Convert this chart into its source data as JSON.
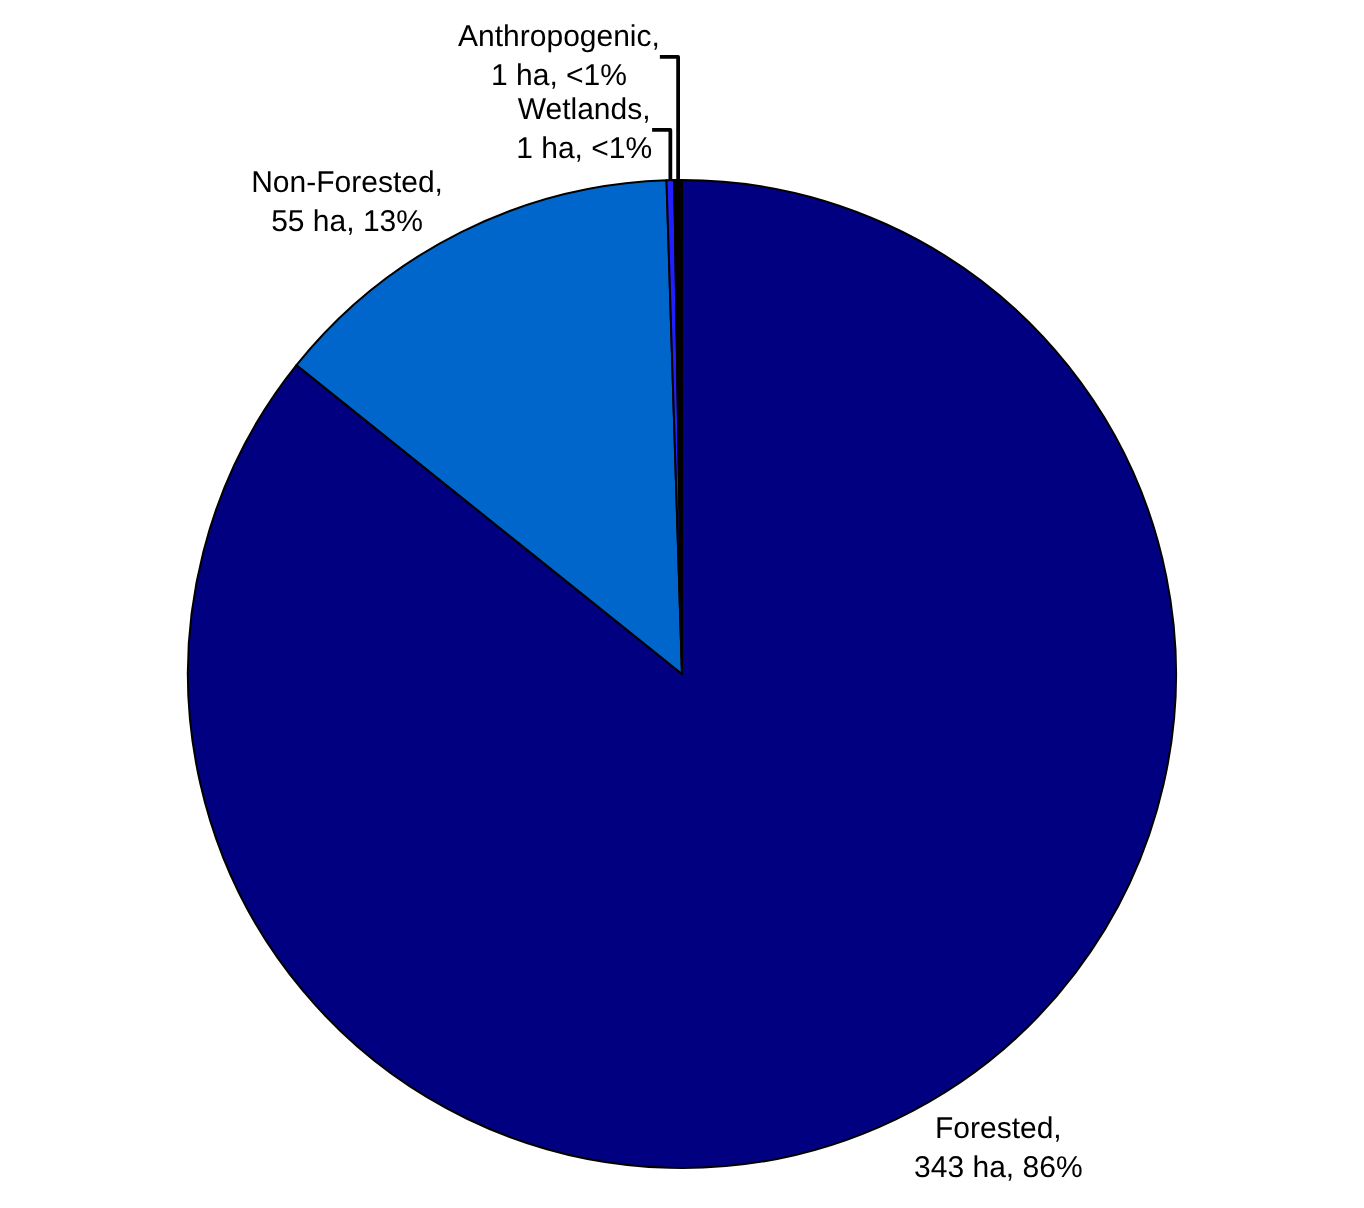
{
  "chart_data": {
    "type": "pie",
    "categories": [
      "Forested",
      "Non-Forested",
      "Wetlands",
      "Anthropogenic"
    ],
    "values": [
      343,
      55,
      1,
      1
    ],
    "colors": [
      "#000080",
      "#0066cc",
      "#2020ff",
      "#000000"
    ],
    "value_labels": [
      ",\n343 ha, 86%",
      ",\n55 ha, 13%",
      ",\n1 ha, <1%",
      ",\n1 ha, <1%"
    ],
    "legend": false
  }
}
